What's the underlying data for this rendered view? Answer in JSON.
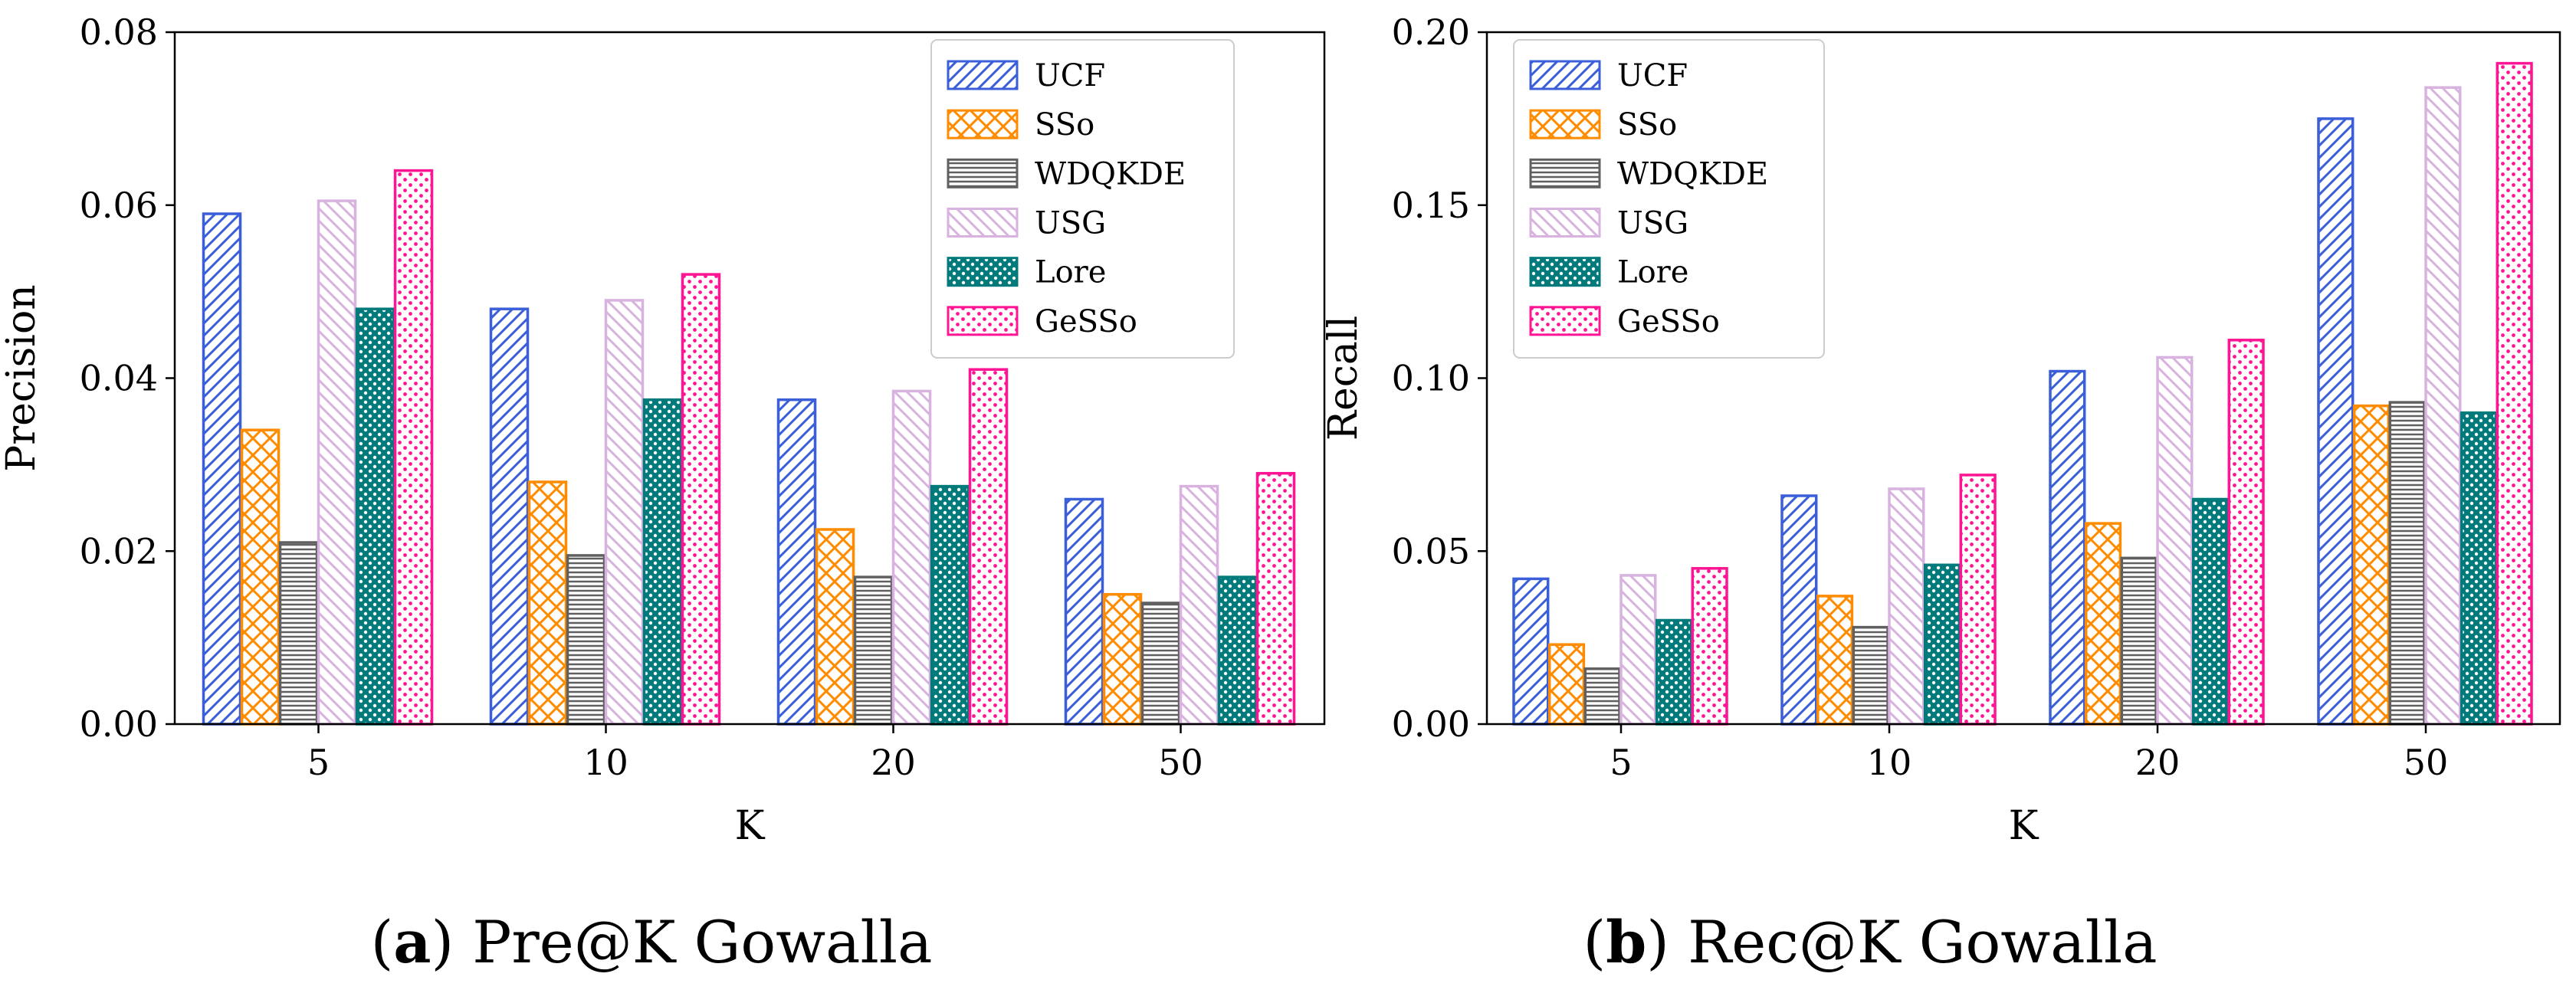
{
  "series_styles": [
    {
      "name": "UCF",
      "color": "#3a5fd9",
      "pattern": "diagonal"
    },
    {
      "name": "SSo",
      "color": "#ff8c00",
      "pattern": "crosshatch"
    },
    {
      "name": "WDQKDE",
      "color": "#606060",
      "pattern": "horizontal"
    },
    {
      "name": "USG",
      "color": "#d9b3e0",
      "pattern": "diagonal-back"
    },
    {
      "name": "Lore",
      "color": "#007a7a",
      "pattern": "dots-dense"
    },
    {
      "name": "GeSSo",
      "color": "#ff1493",
      "pattern": "dots"
    }
  ],
  "chart_data": [
    {
      "type": "bar",
      "xlabel": "K",
      "ylabel": "Precision",
      "categories": [
        "5",
        "10",
        "20",
        "50"
      ],
      "ylim": [
        0,
        0.08
      ],
      "yticks": [
        "0.00",
        "0.02",
        "0.04",
        "0.06",
        "0.08"
      ],
      "legend_position": "top-right",
      "series": [
        {
          "name": "UCF",
          "values": [
            0.059,
            0.048,
            0.0375,
            0.026
          ]
        },
        {
          "name": "SSo",
          "values": [
            0.034,
            0.028,
            0.0225,
            0.015
          ]
        },
        {
          "name": "WDQKDE",
          "values": [
            0.021,
            0.0195,
            0.017,
            0.014
          ]
        },
        {
          "name": "USG",
          "values": [
            0.0605,
            0.049,
            0.0385,
            0.0275
          ]
        },
        {
          "name": "Lore",
          "values": [
            0.048,
            0.0375,
            0.0275,
            0.017
          ]
        },
        {
          "name": "GeSSo",
          "values": [
            0.064,
            0.052,
            0.041,
            0.029
          ]
        }
      ]
    },
    {
      "type": "bar",
      "xlabel": "K",
      "ylabel": "Recall",
      "categories": [
        "5",
        "10",
        "20",
        "50"
      ],
      "ylim": [
        0,
        0.2
      ],
      "yticks": [
        "0.00",
        "0.05",
        "0.10",
        "0.15",
        "0.20"
      ],
      "legend_position": "top-left",
      "series": [
        {
          "name": "UCF",
          "values": [
            0.042,
            0.066,
            0.102,
            0.175
          ]
        },
        {
          "name": "SSo",
          "values": [
            0.023,
            0.037,
            0.058,
            0.092
          ]
        },
        {
          "name": "WDQKDE",
          "values": [
            0.016,
            0.028,
            0.048,
            0.093
          ]
        },
        {
          "name": "USG",
          "values": [
            0.043,
            0.068,
            0.106,
            0.184
          ]
        },
        {
          "name": "Lore",
          "values": [
            0.03,
            0.046,
            0.065,
            0.09
          ]
        },
        {
          "name": "GeSSo",
          "values": [
            0.045,
            0.072,
            0.111,
            0.191
          ]
        }
      ]
    }
  ],
  "captions": [
    {
      "letter": "a",
      "text": " Pre@K Gowalla"
    },
    {
      "letter": "b",
      "text": " Rec@K Gowalla"
    }
  ]
}
